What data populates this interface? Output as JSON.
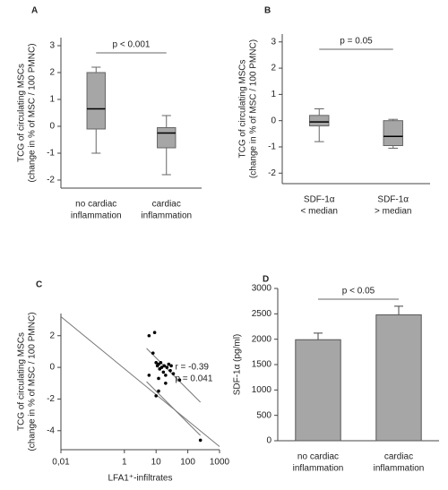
{
  "chart_data": [
    {
      "type": "box",
      "panel_label": "A",
      "y_label": "TCG of circulating MSCs",
      "y_label_sub": "(change in % of MSC / 100 PMNC)",
      "categories": [
        [
          "no cardiac",
          "inflammation"
        ],
        [
          "cardiac",
          "inflammation"
        ]
      ],
      "boxes": [
        {
          "whisker_low": -1.0,
          "q1": -0.1,
          "median": 0.65,
          "q3": 2.0,
          "whisker_high": 2.2
        },
        {
          "whisker_low": -1.8,
          "q1": -0.8,
          "median": -0.25,
          "q3": -0.05,
          "whisker_high": 0.4
        }
      ],
      "color": "#a6a6a6",
      "annotation": "p < 0.001",
      "ylim": [
        -2.3,
        3.3
      ],
      "yticks": [
        -2,
        -1,
        0,
        1,
        2,
        3
      ]
    },
    {
      "type": "box",
      "panel_label": "B",
      "y_label": "TCG of circulating MSCs",
      "y_label_sub": "(change in % of MSC / 100 PMNC)",
      "categories": [
        [
          "SDF-1α",
          "< median"
        ],
        [
          "SDF-1α",
          "> median"
        ]
      ],
      "boxes": [
        {
          "whisker_low": -0.8,
          "q1": -0.2,
          "median": -0.05,
          "q3": 0.2,
          "whisker_high": 0.45
        },
        {
          "whisker_low": -1.05,
          "q1": -0.95,
          "median": -0.6,
          "q3": 0.0,
          "whisker_high": 0.05
        }
      ],
      "color": "#a6a6a6",
      "annotation": "p = 0.05",
      "ylim": [
        -2.4,
        3.3
      ],
      "yticks": [
        -2,
        -1,
        0,
        1,
        2,
        3
      ]
    },
    {
      "type": "scatter",
      "panel_label": "C",
      "y_label": "TCG of circulating MSCs",
      "y_label_sub": "(change in % of MSC / 100 PMNC)",
      "x_label": "LFA1⁺-infiltrates",
      "xscale": "log",
      "x": [
        6,
        9,
        8,
        10,
        11,
        12,
        13,
        14,
        15,
        17,
        18,
        20,
        22,
        25,
        28,
        30,
        12,
        10,
        12,
        20,
        35,
        55,
        6,
        250
      ],
      "y": [
        2.0,
        2.2,
        0.9,
        0.3,
        0.1,
        0.2,
        -0.1,
        0.3,
        0.0,
        -0.3,
        0.1,
        -0.5,
        0.0,
        0.2,
        -0.2,
        0.1,
        -0.7,
        -1.8,
        -1.5,
        -1.0,
        -0.4,
        -0.8,
        -0.5,
        -4.6
      ],
      "color": "#000000",
      "lines": [
        {
          "x": [
            0.01,
            1000
          ],
          "y": [
            3.2,
            -5.0
          ]
        },
        {
          "x": [
            5,
            250
          ],
          "y": [
            1.2,
            -2.2
          ]
        },
        {
          "x": [
            5,
            250
          ],
          "y": [
            -0.9,
            -4.3
          ]
        }
      ],
      "annotations": [
        "r = -0.39",
        "p = 0.041"
      ],
      "xlim": [
        0.01,
        1000
      ],
      "xticks": [
        {
          "value": 0.01,
          "label": "0,01"
        },
        1,
        10,
        100,
        1000
      ],
      "ylim": [
        -5.2,
        3.4
      ],
      "yticks": [
        -4,
        -2,
        0,
        2
      ]
    },
    {
      "type": "bar",
      "panel_label": "D",
      "y_label": "SDF-1α (pg/ml)",
      "categories": [
        [
          "no cardiac",
          "inflammation"
        ],
        [
          "cardiac",
          "inflammation"
        ]
      ],
      "values": [
        1990,
        2480
      ],
      "errors": [
        130,
        170
      ],
      "color": "#a6a6a6",
      "annotation": "p < 0.05",
      "ylim": [
        0,
        3000
      ],
      "yticks": [
        0,
        500,
        1000,
        1500,
        2000,
        2500,
        3000
      ]
    }
  ]
}
